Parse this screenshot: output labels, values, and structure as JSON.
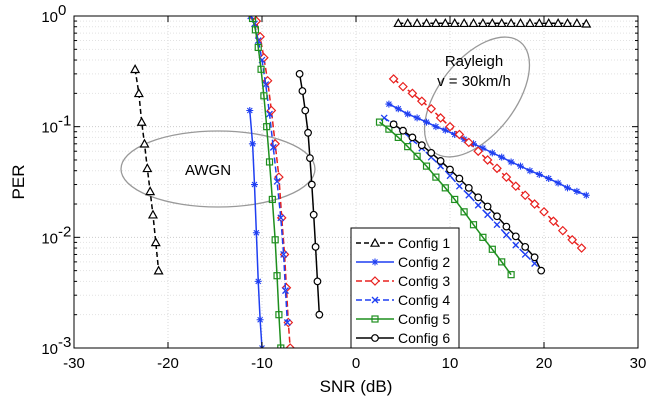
{
  "chart_data": {
    "type": "line",
    "xlabel": "SNR (dB)",
    "ylabel": "PER",
    "xlim": [
      -30,
      30
    ],
    "ylim": [
      0.001,
      1
    ],
    "yscale": "log",
    "grid": true,
    "legend_position": "bottom-center",
    "x_ticks": [
      "-30",
      "-20",
      "-10",
      "0",
      "10",
      "20",
      "30"
    ],
    "y_ticks": [
      {
        "base": "10",
        "exp": "-3",
        "value": 0.001
      },
      {
        "base": "10",
        "exp": "-2",
        "value": 0.01
      },
      {
        "base": "10",
        "exp": "-1",
        "value": 0.1
      },
      {
        "base": "10",
        "exp": "0",
        "value": 1
      }
    ],
    "annotations": [
      {
        "lines": [
          "AWGN"
        ]
      },
      {
        "lines": [
          "Rayleigh",
          "v = 30km/h"
        ]
      }
    ],
    "series": [
      {
        "name": "Config 1",
        "color": "#000000",
        "marker": "triangle",
        "dash": "5,3",
        "segments": [
          [
            [
              -23.5,
              0.33
            ],
            [
              -23.1,
              0.2
            ],
            [
              -22.8,
              0.11
            ],
            [
              -22.5,
              0.07
            ],
            [
              -22.2,
              0.042
            ],
            [
              -21.9,
              0.026
            ],
            [
              -21.6,
              0.016
            ],
            [
              -21.3,
              0.009
            ],
            [
              -21.0,
              0.005
            ]
          ],
          [
            [
              4.5,
              0.86
            ],
            [
              5.5,
              0.86
            ],
            [
              6.5,
              0.86
            ],
            [
              7.5,
              0.86
            ],
            [
              8.5,
              0.86
            ],
            [
              9.5,
              0.86
            ],
            [
              10.5,
              0.86
            ],
            [
              11.5,
              0.86
            ],
            [
              12.5,
              0.86
            ],
            [
              13.5,
              0.86
            ],
            [
              14.5,
              0.86
            ],
            [
              15.5,
              0.86
            ],
            [
              16.5,
              0.86
            ],
            [
              17.5,
              0.86
            ],
            [
              18.5,
              0.86
            ],
            [
              19.5,
              0.86
            ],
            [
              20.5,
              0.86
            ],
            [
              21.5,
              0.86
            ],
            [
              22.5,
              0.86
            ],
            [
              23.5,
              0.86
            ],
            [
              24.5,
              0.85
            ]
          ]
        ]
      },
      {
        "name": "Config 2",
        "color": "#1f3ff2",
        "marker": "star",
        "dash": "",
        "segments": [
          [
            [
              -11.3,
              0.14
            ],
            [
              -11.0,
              0.07
            ],
            [
              -10.8,
              0.03
            ],
            [
              -10.6,
              0.011
            ],
            [
              -10.4,
              0.004
            ],
            [
              -10.2,
              0.0018
            ],
            [
              -10.0,
              0.001
            ]
          ],
          [
            [
              3.5,
              0.16
            ],
            [
              4.5,
              0.145
            ],
            [
              5.5,
              0.13
            ],
            [
              6.5,
              0.12
            ],
            [
              7.5,
              0.11
            ],
            [
              8.5,
              0.1
            ],
            [
              9.5,
              0.093
            ],
            [
              10.5,
              0.085
            ],
            [
              11.5,
              0.077
            ],
            [
              12.5,
              0.07
            ],
            [
              13.5,
              0.064
            ],
            [
              14.5,
              0.058
            ],
            [
              15.5,
              0.053
            ],
            [
              16.5,
              0.048
            ],
            [
              17.5,
              0.044
            ],
            [
              18.5,
              0.04
            ],
            [
              19.5,
              0.037
            ],
            [
              20.5,
              0.034
            ],
            [
              21.5,
              0.031
            ],
            [
              22.5,
              0.028
            ],
            [
              23.5,
              0.026
            ],
            [
              24.5,
              0.024
            ]
          ]
        ]
      },
      {
        "name": "Config 3",
        "color": "#e8201e",
        "marker": "diamond",
        "dash": "6,3",
        "segments": [
          [
            [
              -11.0,
              1.0
            ],
            [
              -10.6,
              0.9
            ],
            [
              -10.2,
              0.65
            ],
            [
              -9.8,
              0.42
            ],
            [
              -9.4,
              0.26
            ],
            [
              -9.0,
              0.14
            ],
            [
              -8.6,
              0.07
            ],
            [
              -8.2,
              0.035
            ],
            [
              -7.9,
              0.015
            ],
            [
              -7.6,
              0.007
            ],
            [
              -7.4,
              0.0035
            ],
            [
              -7.2,
              0.0017
            ],
            [
              -7.0,
              0.001
            ]
          ],
          [
            [
              4.0,
              0.27
            ],
            [
              5.0,
              0.23
            ],
            [
              6.0,
              0.2
            ],
            [
              7.0,
              0.17
            ],
            [
              8.0,
              0.145
            ],
            [
              9.0,
              0.12
            ],
            [
              10.0,
              0.1
            ],
            [
              11.0,
              0.085
            ],
            [
              12.0,
              0.072
            ],
            [
              13.0,
              0.06
            ],
            [
              14.0,
              0.05
            ],
            [
              15.0,
              0.042
            ],
            [
              16.0,
              0.035
            ],
            [
              17.0,
              0.029
            ],
            [
              18.0,
              0.024
            ],
            [
              19.0,
              0.02
            ],
            [
              20.0,
              0.017
            ],
            [
              21.0,
              0.014
            ],
            [
              22.0,
              0.0115
            ],
            [
              23.0,
              0.0095
            ],
            [
              24.0,
              0.008
            ]
          ]
        ]
      },
      {
        "name": "Config 4",
        "color": "#1f3ff2",
        "marker": "x",
        "dash": "6,3",
        "segments": [
          [
            [
              -11.2,
              1.0
            ],
            [
              -10.8,
              0.85
            ],
            [
              -10.4,
              0.6
            ],
            [
              -10.0,
              0.4
            ],
            [
              -9.6,
              0.24
            ],
            [
              -9.2,
              0.13
            ],
            [
              -8.8,
              0.065
            ],
            [
              -8.4,
              0.032
            ],
            [
              -8.0,
              0.015
            ],
            [
              -7.7,
              0.007
            ],
            [
              -7.5,
              0.0033
            ],
            [
              -7.3,
              0.0017
            ]
          ],
          [
            [
              3.0,
              0.12
            ],
            [
              4.0,
              0.105
            ],
            [
              5.0,
              0.09
            ],
            [
              6.0,
              0.076
            ],
            [
              7.0,
              0.064
            ],
            [
              8.0,
              0.053
            ],
            [
              9.0,
              0.044
            ],
            [
              10.0,
              0.036
            ],
            [
              11.0,
              0.029
            ],
            [
              12.0,
              0.024
            ],
            [
              13.0,
              0.0195
            ],
            [
              14.0,
              0.016
            ],
            [
              15.0,
              0.013
            ],
            [
              16.0,
              0.0105
            ],
            [
              17.0,
              0.0085
            ],
            [
              18.0,
              0.007
            ],
            [
              19.0,
              0.0058
            ]
          ]
        ]
      },
      {
        "name": "Config 5",
        "color": "#1e8f1e",
        "marker": "square",
        "dash": "",
        "segments": [
          [
            [
              -11.0,
              0.95
            ],
            [
              -10.7,
              0.75
            ],
            [
              -10.4,
              0.52
            ],
            [
              -10.1,
              0.33
            ],
            [
              -9.8,
              0.19
            ],
            [
              -9.5,
              0.1
            ],
            [
              -9.2,
              0.048
            ],
            [
              -8.9,
              0.022
            ],
            [
              -8.6,
              0.0095
            ],
            [
              -8.4,
              0.0045
            ],
            [
              -8.2,
              0.002
            ],
            [
              -8.0,
              0.001
            ]
          ],
          [
            [
              2.5,
              0.11
            ],
            [
              3.5,
              0.095
            ],
            [
              4.5,
              0.08
            ],
            [
              5.5,
              0.066
            ],
            [
              6.5,
              0.054
            ],
            [
              7.5,
              0.044
            ],
            [
              8.5,
              0.035
            ],
            [
              9.5,
              0.028
            ],
            [
              10.5,
              0.022
            ],
            [
              11.5,
              0.017
            ],
            [
              12.5,
              0.013
            ],
            [
              13.5,
              0.01
            ],
            [
              14.5,
              0.0078
            ],
            [
              15.5,
              0.006
            ],
            [
              16.5,
              0.0046
            ]
          ]
        ]
      },
      {
        "name": "Config 6",
        "color": "#000000",
        "marker": "circle",
        "dash": "",
        "segments": [
          [
            [
              -6.0,
              0.3
            ],
            [
              -5.7,
              0.21
            ],
            [
              -5.4,
              0.14
            ],
            [
              -5.1,
              0.088
            ],
            [
              -4.9,
              0.052
            ],
            [
              -4.7,
              0.03
            ],
            [
              -4.5,
              0.016
            ],
            [
              -4.3,
              0.0082
            ],
            [
              -4.1,
              0.004
            ],
            [
              -3.9,
              0.002
            ]
          ],
          [
            [
              4.0,
              0.105
            ],
            [
              5.0,
              0.092
            ],
            [
              6.0,
              0.08
            ],
            [
              7.0,
              0.068
            ],
            [
              8.0,
              0.058
            ],
            [
              9.0,
              0.049
            ],
            [
              10.0,
              0.041
            ],
            [
              11.0,
              0.034
            ],
            [
              12.0,
              0.028
            ],
            [
              13.0,
              0.023
            ],
            [
              14.0,
              0.019
            ],
            [
              15.0,
              0.0155
            ],
            [
              16.0,
              0.0125
            ],
            [
              17.0,
              0.0102
            ],
            [
              18.0,
              0.0082
            ],
            [
              19.0,
              0.0066
            ],
            [
              19.7,
              0.005
            ]
          ]
        ]
      }
    ]
  }
}
